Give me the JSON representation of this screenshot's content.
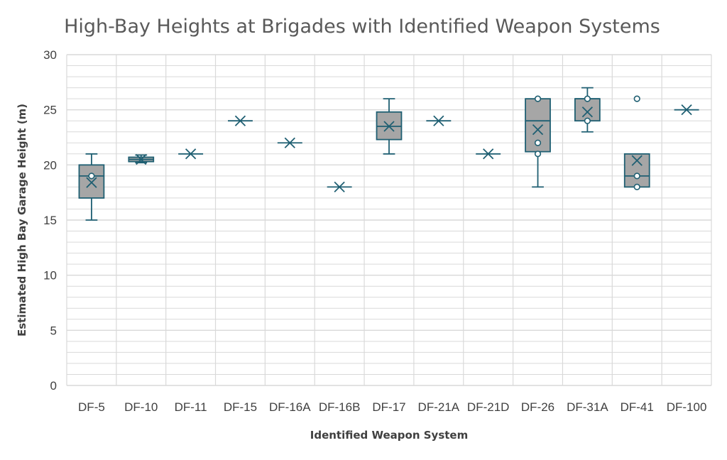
{
  "chart_data": {
    "type": "box",
    "title": "High-Bay Heights at Brigades with Identified Weapon Systems",
    "xlabel": "Identified Weapon System",
    "ylabel": "Estimated High Bay Garage Height (m)",
    "ylim": [
      0,
      30
    ],
    "yticks": [
      "0",
      "5",
      "10",
      "15",
      "20",
      "25",
      "30"
    ],
    "grid": true,
    "categories": [
      "DF-5",
      "DF-10",
      "DF-11",
      "DF-15",
      "DF-16A",
      "DF-16B",
      "DF-17",
      "DF-21A",
      "DF-21D",
      "DF-26",
      "DF-31A",
      "DF-41",
      "DF-100"
    ],
    "boxes": [
      {
        "min": 15,
        "q1": 17,
        "median": 19,
        "q3": 20,
        "max": 21,
        "mean": 18.4,
        "points": [
          19
        ]
      },
      {
        "min": 20.2,
        "q1": 20.3,
        "median": 20.5,
        "q3": 20.7,
        "max": 20.9,
        "mean": 20.5,
        "points": []
      },
      {
        "min": 21,
        "q1": 21,
        "median": 21,
        "q3": 21,
        "max": 21,
        "mean": 21,
        "points": []
      },
      {
        "min": 24,
        "q1": 24,
        "median": 24,
        "q3": 24,
        "max": 24,
        "mean": 24,
        "points": []
      },
      {
        "min": 22,
        "q1": 22,
        "median": 22,
        "q3": 22,
        "max": 22,
        "mean": 22,
        "points": []
      },
      {
        "min": 18,
        "q1": 18,
        "median": 18,
        "q3": 18,
        "max": 18,
        "mean": 18,
        "points": []
      },
      {
        "min": 21,
        "q1": 22.3,
        "median": 23.5,
        "q3": 24.8,
        "max": 26,
        "mean": 23.5,
        "points": []
      },
      {
        "min": 24,
        "q1": 24,
        "median": 24,
        "q3": 24,
        "max": 24,
        "mean": 24,
        "points": []
      },
      {
        "min": 21,
        "q1": 21,
        "median": 21,
        "q3": 21,
        "max": 21,
        "mean": 21,
        "points": []
      },
      {
        "min": 18,
        "q1": 21.2,
        "median": 24,
        "q3": 26,
        "max": 26,
        "mean": 23.2,
        "points": [
          26,
          22,
          21
        ]
      },
      {
        "min": 23,
        "q1": 24,
        "median": 26,
        "q3": 26,
        "max": 27,
        "mean": 24.8,
        "points": [
          26,
          24
        ]
      },
      {
        "min": 18,
        "q1": 18,
        "median": 19,
        "q3": 21,
        "max": 21,
        "mean": 20.4,
        "points": [
          26,
          19,
          18
        ]
      },
      {
        "min": 25,
        "q1": 25,
        "median": 25,
        "q3": 25,
        "max": 25,
        "mean": 25,
        "points": []
      }
    ],
    "colors": {
      "box_fill": "#a6a6a6",
      "box_stroke": "#1f5f72",
      "grid": "#d9d9d9",
      "title": "#595959",
      "text": "#404040"
    }
  }
}
